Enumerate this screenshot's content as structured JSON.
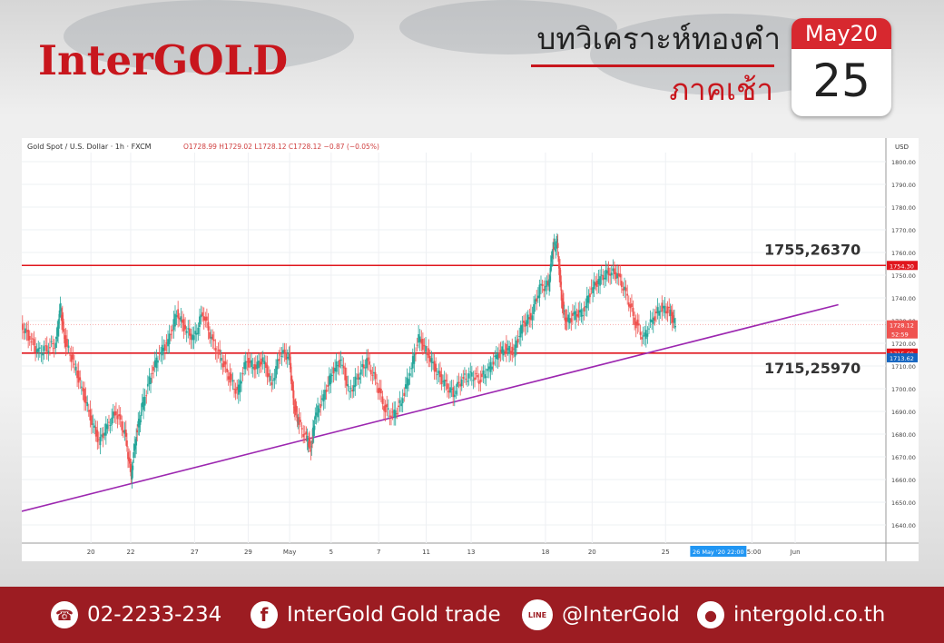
{
  "header": {
    "logo": "InterGOLD",
    "title": "บทวิเคราะห์ทองคำ",
    "subtitle": "ภาคเช้า",
    "calendar_month": "May20",
    "calendar_day": "25"
  },
  "chart_data": {
    "type": "line",
    "legend_text": "Gold Spot / U.S. Dollar · 1h · FXCM",
    "ohlc_text": "O1728.99 H1729.02 L1728.12 C1728.12 −0.87 (−0.05%)",
    "currency": "USD",
    "ylim": [
      1632,
      1804
    ],
    "y_ticks": [
      1800,
      1790,
      1780,
      1770,
      1760,
      1750,
      1740,
      1730,
      1720,
      1710,
      1700,
      1690,
      1680,
      1670,
      1660,
      1650,
      1640
    ],
    "y_tick_labels": [
      "1800.00",
      "1790.00",
      "1780.00",
      "1770.00",
      "1760.00",
      "1750.00",
      "1740.00",
      "1730.00",
      "1720.00",
      "1710.00",
      "1700.00",
      "1690.00",
      "1680.00",
      "1670.00",
      "1660.00",
      "1650.00",
      "1640.00"
    ],
    "x_ticks": [
      {
        "pos": 0.08,
        "label": "20"
      },
      {
        "pos": 0.126,
        "label": "22"
      },
      {
        "pos": 0.2,
        "label": "27"
      },
      {
        "pos": 0.262,
        "label": "29"
      },
      {
        "pos": 0.31,
        "label": "May"
      },
      {
        "pos": 0.358,
        "label": "5"
      },
      {
        "pos": 0.413,
        "label": "7"
      },
      {
        "pos": 0.468,
        "label": "11"
      },
      {
        "pos": 0.52,
        "label": "13"
      },
      {
        "pos": 0.606,
        "label": "18"
      },
      {
        "pos": 0.66,
        "label": "20"
      },
      {
        "pos": 0.745,
        "label": "25"
      },
      {
        "pos": 0.845,
        "label": "15:00"
      },
      {
        "pos": 0.895,
        "label": "Jun"
      }
    ],
    "x_cursor_label": "26 May '20  22:00",
    "x_cursor_pos": 0.805,
    "price_series": [
      [
        0.0,
        1728
      ],
      [
        0.01,
        1722
      ],
      [
        0.02,
        1716
      ],
      [
        0.03,
        1718
      ],
      [
        0.04,
        1720
      ],
      [
        0.045,
        1736
      ],
      [
        0.05,
        1722
      ],
      [
        0.06,
        1712
      ],
      [
        0.07,
        1700
      ],
      [
        0.08,
        1688
      ],
      [
        0.09,
        1676
      ],
      [
        0.1,
        1684
      ],
      [
        0.11,
        1690
      ],
      [
        0.12,
        1680
      ],
      [
        0.127,
        1662
      ],
      [
        0.133,
        1680
      ],
      [
        0.14,
        1692
      ],
      [
        0.15,
        1706
      ],
      [
        0.16,
        1716
      ],
      [
        0.17,
        1720
      ],
      [
        0.18,
        1734
      ],
      [
        0.19,
        1726
      ],
      [
        0.2,
        1722
      ],
      [
        0.21,
        1734
      ],
      [
        0.22,
        1722
      ],
      [
        0.23,
        1714
      ],
      [
        0.24,
        1706
      ],
      [
        0.25,
        1698
      ],
      [
        0.26,
        1712
      ],
      [
        0.27,
        1710
      ],
      [
        0.28,
        1712
      ],
      [
        0.29,
        1702
      ],
      [
        0.3,
        1716
      ],
      [
        0.31,
        1714
      ],
      [
        0.315,
        1694
      ],
      [
        0.32,
        1686
      ],
      [
        0.33,
        1678
      ],
      [
        0.335,
        1674
      ],
      [
        0.34,
        1688
      ],
      [
        0.35,
        1696
      ],
      [
        0.36,
        1708
      ],
      [
        0.37,
        1712
      ],
      [
        0.38,
        1698
      ],
      [
        0.39,
        1706
      ],
      [
        0.4,
        1712
      ],
      [
        0.41,
        1704
      ],
      [
        0.42,
        1692
      ],
      [
        0.43,
        1688
      ],
      [
        0.44,
        1694
      ],
      [
        0.45,
        1708
      ],
      [
        0.46,
        1722
      ],
      [
        0.47,
        1716
      ],
      [
        0.48,
        1708
      ],
      [
        0.49,
        1702
      ],
      [
        0.5,
        1698
      ],
      [
        0.51,
        1704
      ],
      [
        0.52,
        1706
      ],
      [
        0.53,
        1704
      ],
      [
        0.54,
        1708
      ],
      [
        0.55,
        1714
      ],
      [
        0.56,
        1718
      ],
      [
        0.57,
        1716
      ],
      [
        0.58,
        1728
      ],
      [
        0.59,
        1732
      ],
      [
        0.6,
        1744
      ],
      [
        0.61,
        1746
      ],
      [
        0.615,
        1762
      ],
      [
        0.62,
        1764
      ],
      [
        0.625,
        1740
      ],
      [
        0.63,
        1730
      ],
      [
        0.64,
        1732
      ],
      [
        0.65,
        1734
      ],
      [
        0.66,
        1744
      ],
      [
        0.67,
        1748
      ],
      [
        0.68,
        1752
      ],
      [
        0.69,
        1750
      ],
      [
        0.7,
        1742
      ],
      [
        0.71,
        1730
      ],
      [
        0.72,
        1722
      ],
      [
        0.73,
        1730
      ],
      [
        0.74,
        1736
      ],
      [
        0.75,
        1734
      ],
      [
        0.757,
        1728
      ]
    ],
    "series": [
      {
        "name": "1755,26370",
        "type": "horizontal-line",
        "value": 1754.3,
        "value_label": "1754.30",
        "color": "#e0161d"
      },
      {
        "name": "1715,25970",
        "type": "horizontal-line",
        "value": 1715.69,
        "value_label": "1715.69",
        "color": "#e0161d"
      }
    ],
    "trendline": {
      "from": [
        0.0,
        1646
      ],
      "to": [
        0.945,
        1737
      ],
      "color": "#9c27b0"
    },
    "last_price": {
      "value": 1728.12,
      "label": "1728.12",
      "countdown": "52:59"
    },
    "trend_price_label": "1713.62",
    "colors": {
      "up": "#26a69a",
      "down": "#ef5350",
      "support_resistance": "#e0161d",
      "trend": "#9c27b0"
    }
  },
  "footer": {
    "phone": "02-2233-234",
    "facebook": "InterGold Gold trade",
    "line": "@InterGold",
    "website": "intergold.co.th",
    "phone_icon": "phone-icon",
    "facebook_icon": "facebook-icon",
    "line_icon": "line-icon",
    "website_icon": "globe-icon",
    "line_icon_text": "LINE",
    "facebook_icon_text": "f"
  }
}
